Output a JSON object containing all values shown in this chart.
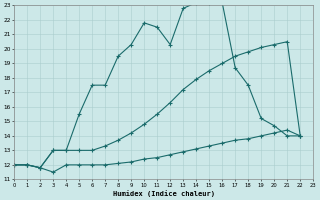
{
  "xlabel": "Humidex (Indice chaleur)",
  "bg_color": "#cce8e8",
  "grid_color": "#aacece",
  "line_color": "#1a6b6b",
  "xlim": [
    0,
    23
  ],
  "ylim": [
    11,
    23
  ],
  "ytick_vals": [
    11,
    12,
    13,
    14,
    15,
    16,
    17,
    18,
    19,
    20,
    21,
    22,
    23
  ],
  "xtick_vals": [
    0,
    1,
    2,
    3,
    4,
    5,
    6,
    7,
    8,
    9,
    10,
    11,
    12,
    13,
    14,
    15,
    16,
    17,
    18,
    19,
    20,
    21,
    22,
    23
  ],
  "curve1_x": [
    0,
    1,
    2,
    3,
    4,
    5,
    6,
    7,
    8,
    9,
    10,
    11,
    12,
    13,
    14,
    15,
    16,
    17,
    18,
    19,
    20,
    21,
    22
  ],
  "curve1_y": [
    12.0,
    12.0,
    11.8,
    11.5,
    12.0,
    12.0,
    12.0,
    12.0,
    12.1,
    12.2,
    12.4,
    12.5,
    12.7,
    12.9,
    13.1,
    13.3,
    13.5,
    13.7,
    13.8,
    14.0,
    14.2,
    14.4,
    14.0
  ],
  "curve2_x": [
    0,
    1,
    2,
    3,
    4,
    5,
    6,
    7,
    8,
    9,
    10,
    11,
    12,
    13,
    14,
    15,
    16,
    17,
    18,
    19,
    20,
    21,
    22
  ],
  "curve2_y": [
    12.0,
    12.0,
    11.8,
    13.0,
    13.0,
    15.5,
    17.5,
    17.5,
    19.5,
    20.3,
    21.8,
    21.5,
    20.3,
    22.8,
    23.2,
    23.2,
    23.2,
    18.7,
    17.5,
    15.2,
    14.7,
    14.0,
    14.0
  ],
  "curve3_x": [
    0,
    1,
    2,
    3,
    4,
    5,
    6,
    7,
    8,
    9,
    10,
    11,
    12,
    13,
    14,
    15,
    16,
    17,
    18,
    19,
    20,
    21,
    22
  ],
  "curve3_y": [
    12.0,
    12.0,
    11.8,
    13.0,
    13.0,
    13.0,
    13.0,
    13.3,
    13.7,
    14.2,
    14.8,
    15.5,
    16.3,
    17.2,
    17.9,
    18.5,
    19.0,
    19.5,
    19.8,
    20.1,
    20.3,
    20.5,
    14.0
  ]
}
